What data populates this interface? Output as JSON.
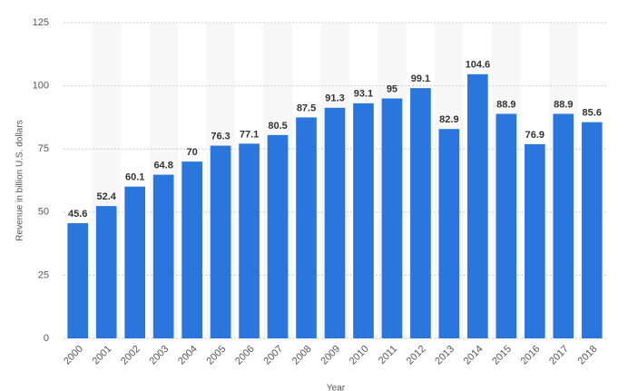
{
  "chart_data": {
    "type": "bar",
    "categories": [
      "2000",
      "2001",
      "2002",
      "2003",
      "2004",
      "2005",
      "2006",
      "2007",
      "2008",
      "2009",
      "2010",
      "2011",
      "2012",
      "2013",
      "2014",
      "2015",
      "2016",
      "2017",
      "2018"
    ],
    "values": [
      45.6,
      52.4,
      60.1,
      64.8,
      70,
      76.3,
      77.1,
      80.5,
      87.5,
      91.3,
      93.1,
      95,
      99.1,
      82.9,
      104.6,
      88.9,
      76.9,
      88.9,
      85.6
    ],
    "color": "#2a76dd",
    "ylim": [
      0,
      125
    ],
    "yticks": [
      0,
      25,
      50,
      75,
      100,
      125
    ],
    "grid": true,
    "ylabel": "Revenue in billion U.S. dollars",
    "xlabel": "Year"
  }
}
